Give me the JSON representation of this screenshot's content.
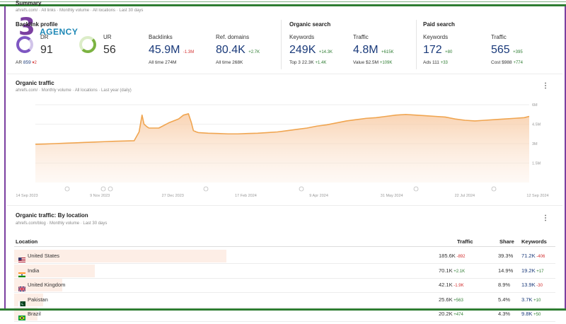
{
  "summary": {
    "title": "Summary",
    "crumbs": "ahrefs.com/ · All links · Monthly volume · All locations · Last 30 days"
  },
  "backlink_profile": {
    "title": "Backlink profile",
    "dr_label": "DR",
    "dr_value": "91",
    "ur_label": "UR",
    "ur_value": "56",
    "ar_label": "AR",
    "ar_value": "859",
    "ar_change": "▾2",
    "backlinks_label": "Backlinks",
    "backlinks_value": "45.9M",
    "backlinks_change": "-1.3M",
    "backlinks_alltime": "All time 274M",
    "refdomains_label": "Ref. domains",
    "refdomains_value": "80.4K",
    "refdomains_change": "+2.7K",
    "refdomains_alltime": "All time 268K"
  },
  "organic_search": {
    "title": "Organic search",
    "keywords_label": "Keywords",
    "keywords_value": "249K",
    "keywords_change": "+14.3K",
    "top3": "Top 3 22.3K",
    "top3_change": "+1.4K",
    "traffic_label": "Traffic",
    "traffic_value": "4.8M",
    "traffic_change": "+615K",
    "value": "Value $2.5M",
    "value_change": "+109K"
  },
  "paid_search": {
    "title": "Paid search",
    "keywords_label": "Keywords",
    "keywords_value": "172",
    "keywords_change": "+80",
    "ads": "Ads 111",
    "ads_change": "+33",
    "traffic_label": "Traffic",
    "traffic_value": "565",
    "traffic_change": "+395",
    "cost": "Cost $988",
    "cost_change": "+774"
  },
  "logo": {
    "digit": "3",
    "text": "AGENCY"
  },
  "organic_traffic": {
    "title": "Organic traffic",
    "crumbs": "ahrefs.com/ · Monthly volume · All locations · Last year (daily)",
    "menu": "⋮"
  },
  "chart_data": {
    "type": "area",
    "x_ticks": [
      "14 Sep 2023",
      "9 Nov 2023",
      "27 Dec 2023",
      "17 Feb 2024",
      "9 Apr 2024",
      "31 May 2024",
      "22 Jul 2024",
      "12 Sep 2024"
    ],
    "y_ticks": [
      "6M",
      "4.5M",
      "3M",
      "1.5M"
    ],
    "ylim": [
      0,
      6
    ],
    "y_unit": "M",
    "series": [
      {
        "color": "#f0a550",
        "x": [
          0,
          2,
          4,
          6,
          8,
          10,
          12,
          14,
          16,
          18,
          20,
          21,
          21.6,
          22,
          22.6,
          23,
          25,
          27,
          29,
          30,
          31,
          31.6,
          32,
          32.6,
          33,
          35,
          37,
          39,
          41,
          43,
          45,
          47,
          49,
          51,
          53,
          55,
          57,
          59,
          61,
          63,
          65,
          67,
          69,
          71,
          73,
          75,
          77,
          79,
          81,
          83,
          85,
          87,
          89,
          91,
          93,
          95,
          97,
          99,
          100
        ],
        "values": [
          2.95,
          2.97,
          3.0,
          3.03,
          3.06,
          3.09,
          3.12,
          3.15,
          3.18,
          3.2,
          3.22,
          3.9,
          5.2,
          4.5,
          4.3,
          4.2,
          4.2,
          4.6,
          4.9,
          5.2,
          5.3,
          4.6,
          4.0,
          3.9,
          3.85,
          3.8,
          3.78,
          3.75,
          3.75,
          3.78,
          3.8,
          3.85,
          3.9,
          4.0,
          4.1,
          4.2,
          4.35,
          4.45,
          4.6,
          4.75,
          4.85,
          4.95,
          5.0,
          5.1,
          5.2,
          5.25,
          5.2,
          5.15,
          5.1,
          5.05,
          4.9,
          4.8,
          4.75,
          4.8,
          4.85,
          4.9,
          4.95,
          5.0,
          5.1
        ]
      }
    ]
  },
  "by_location": {
    "title": "Organic traffic: By location",
    "crumbs": "ahrefs.com/blog · Monthly volume · Last 30 days",
    "menu": "⋮",
    "col_location": "Location",
    "col_traffic": "Traffic",
    "col_share": "Share",
    "col_keywords": "Keywords",
    "rows": [
      {
        "country": "United States",
        "traffic": "185.6K",
        "traffic_change": "-892",
        "traffic_pos": false,
        "share": "39.3%",
        "share_frac": 0.393,
        "keywords": "71.2K",
        "keywords_change": "-406",
        "keywords_pos": false,
        "flag": "us"
      },
      {
        "country": "India",
        "traffic": "70.1K",
        "traffic_change": "+2.1K",
        "traffic_pos": true,
        "share": "14.9%",
        "share_frac": 0.149,
        "keywords": "19.2K",
        "keywords_change": "+17",
        "keywords_pos": true,
        "flag": "in"
      },
      {
        "country": "United Kingdom",
        "traffic": "42.1K",
        "traffic_change": "-1.9K",
        "traffic_pos": false,
        "share": "8.9%",
        "share_frac": 0.089,
        "keywords": "13.9K",
        "keywords_change": "-30",
        "keywords_pos": false,
        "flag": "uk"
      },
      {
        "country": "Pakistan",
        "traffic": "25.6K",
        "traffic_change": "+563",
        "traffic_pos": true,
        "share": "5.4%",
        "share_frac": 0.054,
        "keywords": "3.7K",
        "keywords_change": "+10",
        "keywords_pos": true,
        "flag": "pk"
      },
      {
        "country": "Brazil",
        "traffic": "20.2K",
        "traffic_change": "+474",
        "traffic_pos": true,
        "share": "4.3%",
        "share_frac": 0.043,
        "keywords": "9.8K",
        "keywords_change": "+50",
        "keywords_pos": true,
        "flag": "br"
      }
    ]
  }
}
